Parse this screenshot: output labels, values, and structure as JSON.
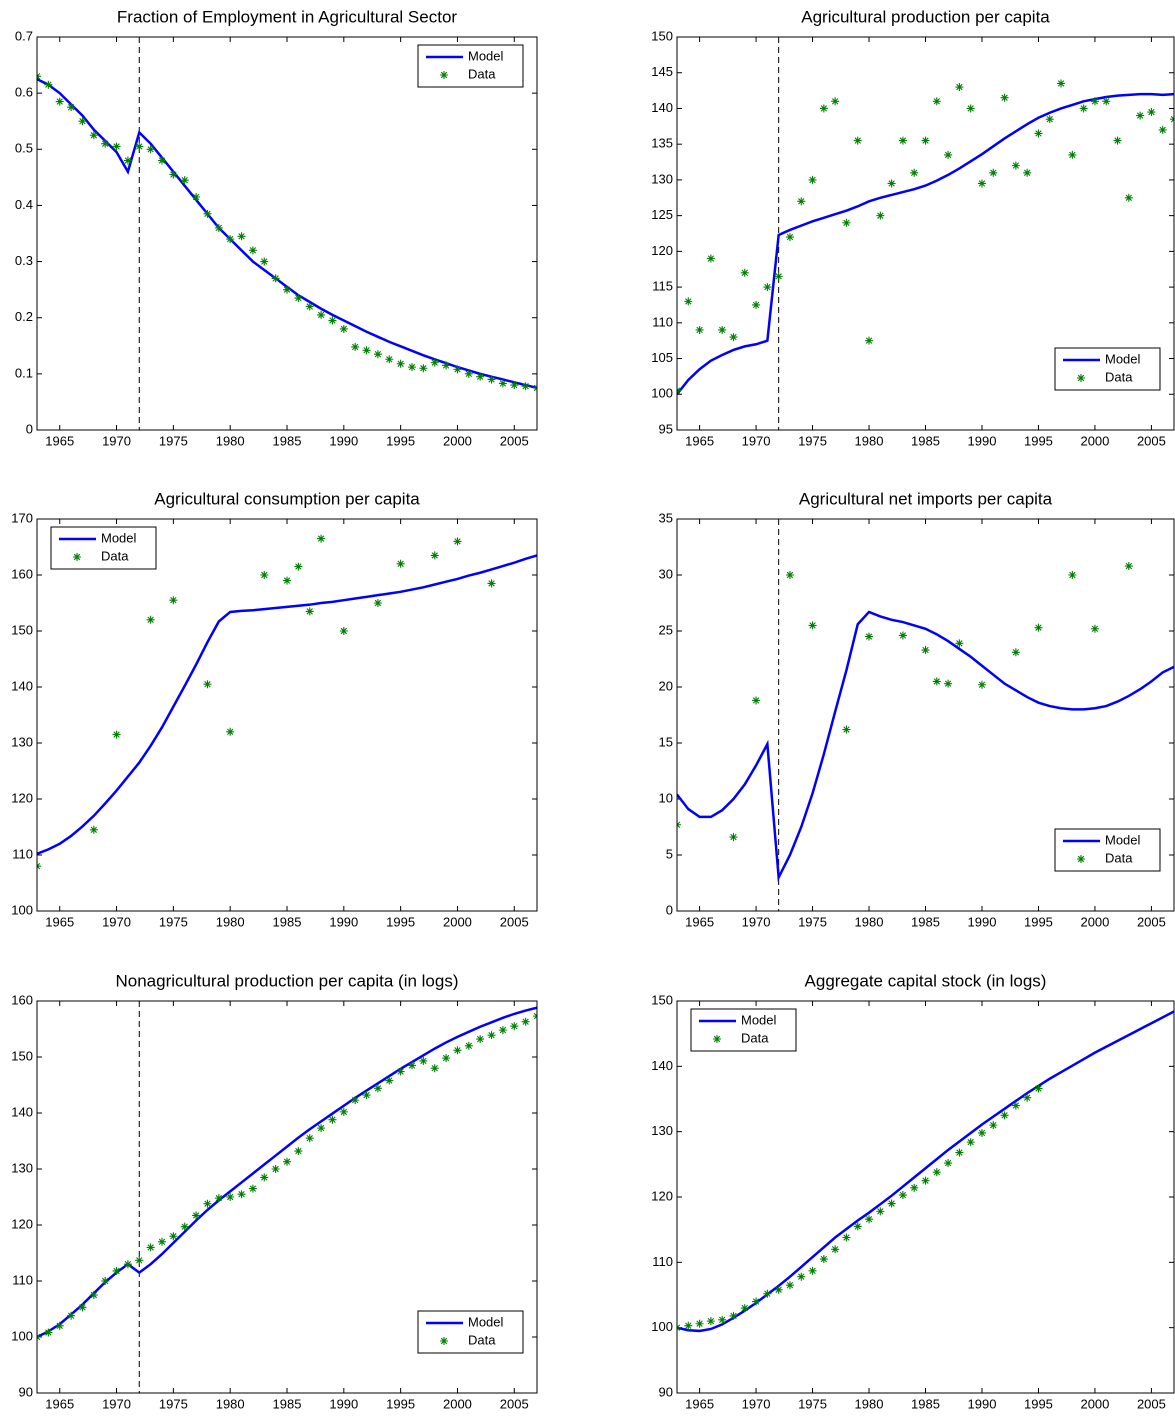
{
  "chart_data": [
    {
      "type": "line",
      "title": "Fraction of Employment in Agricultural Sector",
      "legend": "upper right",
      "vline": 1972,
      "xlim": [
        1963,
        2007
      ],
      "xticks": [
        1965,
        1970,
        1975,
        1980,
        1985,
        1990,
        1995,
        2000,
        2005
      ],
      "ylim": [
        0,
        0.7
      ],
      "yticks": [
        0,
        0.1,
        0.2,
        0.3,
        0.4,
        0.5,
        0.6,
        0.7
      ],
      "x": [
        1963,
        1964,
        1965,
        1966,
        1967,
        1968,
        1969,
        1970,
        1971,
        1972,
        1973,
        1974,
        1975,
        1976,
        1977,
        1978,
        1979,
        1980,
        1981,
        1982,
        1983,
        1984,
        1985,
        1986,
        1987,
        1988,
        1989,
        1990,
        1991,
        1992,
        1993,
        1994,
        1995,
        1996,
        1997,
        1998,
        1999,
        2000,
        2001,
        2002,
        2003,
        2004,
        2005,
        2006,
        2007
      ],
      "series": [
        {
          "name": "Model",
          "color": "#0000ff",
          "mode": "line",
          "values": [
            0.625,
            0.615,
            0.6,
            0.58,
            0.56,
            0.535,
            0.515,
            0.495,
            0.46,
            0.53,
            0.51,
            0.485,
            0.46,
            0.435,
            0.41,
            0.385,
            0.36,
            0.34,
            0.32,
            0.3,
            0.285,
            0.27,
            0.255,
            0.24,
            0.228,
            0.216,
            0.205,
            0.195,
            0.185,
            0.175,
            0.166,
            0.157,
            0.149,
            0.141,
            0.133,
            0.126,
            0.119,
            0.112,
            0.106,
            0.1,
            0.095,
            0.09,
            0.085,
            0.08,
            0.075
          ]
        },
        {
          "name": "Data",
          "color": "#008000",
          "mode": "markers",
          "values": [
            0.63,
            0.615,
            0.585,
            0.575,
            0.55,
            0.525,
            0.51,
            0.505,
            0.48,
            0.505,
            0.5,
            0.48,
            0.455,
            0.445,
            0.415,
            0.385,
            0.36,
            0.34,
            0.345,
            0.32,
            0.3,
            0.27,
            0.25,
            0.235,
            0.22,
            0.205,
            0.195,
            0.18,
            0.148,
            0.142,
            0.135,
            0.126,
            0.118,
            0.112,
            0.11,
            0.12,
            0.115,
            0.108,
            0.1,
            0.095,
            0.09,
            0.083,
            0.08,
            0.078,
            0.075
          ]
        }
      ]
    },
    {
      "type": "line",
      "title": "Agricultural production per capita",
      "legend": "lower right",
      "vline": 1972,
      "xlim": [
        1963,
        2007
      ],
      "xticks": [
        1965,
        1970,
        1975,
        1980,
        1985,
        1990,
        1995,
        2000,
        2005
      ],
      "ylim": [
        95,
        150
      ],
      "yticks": [
        95,
        100,
        105,
        110,
        115,
        120,
        125,
        130,
        135,
        140,
        145,
        150
      ],
      "x": [
        1963,
        1964,
        1965,
        1966,
        1967,
        1968,
        1969,
        1970,
        1971,
        1972,
        1973,
        1974,
        1975,
        1976,
        1977,
        1978,
        1979,
        1980,
        1981,
        1982,
        1983,
        1984,
        1985,
        1986,
        1987,
        1988,
        1989,
        1990,
        1991,
        1992,
        1993,
        1994,
        1995,
        1996,
        1997,
        1998,
        1999,
        2000,
        2001,
        2002,
        2003,
        2004,
        2005,
        2006,
        2007
      ],
      "series": [
        {
          "name": "Model",
          "color": "#0000ff",
          "mode": "line",
          "values": [
            100,
            102,
            103.5,
            104.7,
            105.5,
            106.2,
            106.7,
            107,
            107.5,
            122.3,
            123,
            123.6,
            124.2,
            124.7,
            125.2,
            125.7,
            126.3,
            127,
            127.5,
            127.9,
            128.3,
            128.7,
            129.2,
            129.9,
            130.7,
            131.6,
            132.6,
            133.6,
            134.7,
            135.8,
            136.8,
            137.8,
            138.7,
            139.4,
            140,
            140.5,
            141,
            141.3,
            141.6,
            141.8,
            141.9,
            142,
            142,
            141.9,
            142
          ]
        },
        {
          "name": "Data",
          "color": "#008000",
          "mode": "markers",
          "values": [
            100.5,
            113,
            109,
            119,
            109,
            108,
            117,
            112.5,
            115,
            116.5,
            122,
            127,
            130,
            140,
            141,
            124,
            135.5,
            107.5,
            125,
            129.5,
            135.5,
            131,
            135.5,
            141,
            133.5,
            143,
            140,
            129.5,
            131,
            141.5,
            132,
            131,
            136.5,
            138.5,
            143.5,
            133.5,
            140,
            141,
            141,
            135.5,
            127.5,
            139,
            139.5,
            137,
            138.5
          ]
        }
      ]
    },
    {
      "type": "line",
      "title": "Agricultural consumption per capita",
      "legend": "upper left",
      "xlim": [
        1963,
        2007
      ],
      "xticks": [
        1965,
        1970,
        1975,
        1980,
        1985,
        1990,
        1995,
        2000,
        2005
      ],
      "ylim": [
        100,
        170
      ],
      "yticks": [
        100,
        110,
        120,
        130,
        140,
        150,
        160,
        170
      ],
      "x": [
        1963,
        1964,
        1965,
        1966,
        1967,
        1968,
        1969,
        1970,
        1971,
        1972,
        1973,
        1974,
        1975,
        1976,
        1977,
        1978,
        1979,
        1980,
        1981,
        1982,
        1983,
        1984,
        1985,
        1986,
        1987,
        1988,
        1989,
        1990,
        1991,
        1992,
        1993,
        1994,
        1995,
        1996,
        1997,
        1998,
        1999,
        2000,
        2001,
        2002,
        2003,
        2004,
        2005,
        2006,
        2007
      ],
      "series": [
        {
          "name": "Model",
          "color": "#0000ff",
          "mode": "line",
          "values": [
            110.2,
            111,
            112,
            113.4,
            115.1,
            117,
            119.2,
            121.5,
            124,
            126.5,
            129.5,
            132.8,
            136.5,
            140.2,
            144,
            148,
            151.7,
            153.4,
            153.6,
            153.7,
            153.9,
            154.1,
            154.3,
            154.5,
            154.7,
            155,
            155.2,
            155.5,
            155.8,
            156.1,
            156.4,
            156.7,
            157,
            157.4,
            157.8,
            158.3,
            158.8,
            159.3,
            159.9,
            160.4,
            161,
            161.6,
            162.2,
            162.9,
            163.5
          ]
        },
        {
          "name": "Data",
          "color": "#008000",
          "mode": "markers",
          "values": [
            108,
            null,
            null,
            null,
            null,
            114.5,
            null,
            131.5,
            null,
            null,
            152,
            null,
            155.5,
            null,
            null,
            140.5,
            null,
            132,
            null,
            null,
            160,
            null,
            159,
            161.5,
            153.5,
            166.5,
            null,
            150,
            null,
            null,
            155,
            null,
            162,
            null,
            null,
            163.5,
            null,
            166,
            null,
            null,
            158.5,
            null,
            null,
            null,
            null
          ]
        }
      ]
    },
    {
      "type": "line",
      "title": "Agricultural net imports per capita",
      "legend": "lower right",
      "vline": 1972,
      "xlim": [
        1963,
        2007
      ],
      "xticks": [
        1965,
        1970,
        1975,
        1980,
        1985,
        1990,
        1995,
        2000,
        2005
      ],
      "ylim": [
        0,
        35
      ],
      "yticks": [
        0,
        5,
        10,
        15,
        20,
        25,
        30,
        35
      ],
      "x": [
        1963,
        1964,
        1965,
        1966,
        1967,
        1968,
        1969,
        1970,
        1971,
        1972,
        1973,
        1974,
        1975,
        1976,
        1977,
        1978,
        1979,
        1980,
        1981,
        1982,
        1983,
        1984,
        1985,
        1986,
        1987,
        1988,
        1989,
        1990,
        1991,
        1992,
        1993,
        1994,
        1995,
        1996,
        1997,
        1998,
        1999,
        2000,
        2001,
        2002,
        2003,
        2004,
        2005,
        2006,
        2007
      ],
      "series": [
        {
          "name": "Model",
          "color": "#0000ff",
          "mode": "line",
          "values": [
            10.4,
            9.1,
            8.4,
            8.4,
            9,
            10,
            11.3,
            13,
            14.9,
            3,
            5,
            7.5,
            10.5,
            14,
            17.8,
            21.5,
            25.6,
            26.7,
            26.3,
            26,
            25.8,
            25.5,
            25.2,
            24.7,
            24.1,
            23.4,
            22.7,
            21.9,
            21.1,
            20.3,
            19.7,
            19.1,
            18.6,
            18.3,
            18.1,
            18,
            18,
            18.1,
            18.3,
            18.7,
            19.2,
            19.8,
            20.5,
            21.3,
            21.8
          ]
        },
        {
          "name": "Data",
          "color": "#008000",
          "mode": "markers",
          "values": [
            7.7,
            null,
            null,
            null,
            null,
            6.6,
            null,
            18.8,
            null,
            null,
            30,
            null,
            25.5,
            null,
            null,
            16.2,
            null,
            24.5,
            null,
            null,
            24.6,
            null,
            23.3,
            20.5,
            20.3,
            23.9,
            null,
            20.2,
            null,
            null,
            23.1,
            null,
            25.3,
            null,
            null,
            30,
            null,
            25.2,
            null,
            null,
            30.8,
            null,
            null,
            null,
            null
          ]
        }
      ]
    },
    {
      "type": "line",
      "title": "Nonagricultural production per capita (in logs)",
      "legend": "lower right",
      "vline": 1972,
      "xlim": [
        1963,
        2007
      ],
      "xticks": [
        1965,
        1970,
        1975,
        1980,
        1985,
        1990,
        1995,
        2000,
        2005
      ],
      "ylim": [
        90,
        160
      ],
      "yticks": [
        90,
        100,
        110,
        120,
        130,
        140,
        150,
        160
      ],
      "x": [
        1963,
        1964,
        1965,
        1966,
        1967,
        1968,
        1969,
        1970,
        1971,
        1972,
        1973,
        1974,
        1975,
        1976,
        1977,
        1978,
        1979,
        1980,
        1981,
        1982,
        1983,
        1984,
        1985,
        1986,
        1987,
        1988,
        1989,
        1990,
        1991,
        1992,
        1993,
        1994,
        1995,
        1996,
        1997,
        1998,
        1999,
        2000,
        2001,
        2002,
        2003,
        2004,
        2005,
        2006,
        2007
      ],
      "series": [
        {
          "name": "Model",
          "color": "#0000ff",
          "mode": "line",
          "values": [
            100,
            101,
            102.3,
            104,
            105.8,
            107.8,
            109.8,
            111.5,
            113,
            111.5,
            113,
            114.8,
            116.8,
            118.8,
            120.8,
            122.7,
            124.4,
            126,
            127.6,
            129.2,
            130.8,
            132.4,
            134,
            135.6,
            137.1,
            138.5,
            139.9,
            141.3,
            142.7,
            144,
            145.3,
            146.6,
            147.9,
            149.1,
            150.3,
            151.5,
            152.6,
            153.6,
            154.5,
            155.4,
            156.2,
            157,
            157.7,
            158.3,
            158.8
          ]
        },
        {
          "name": "Data",
          "color": "#008000",
          "mode": "markers",
          "values": [
            100,
            100.8,
            102,
            103.8,
            105.3,
            107.5,
            110,
            111.8,
            113,
            113.7,
            116,
            117,
            118,
            119.7,
            121.7,
            123.8,
            124.8,
            125,
            125.5,
            126.5,
            128.5,
            130,
            131.3,
            133.2,
            135.5,
            137.3,
            138.8,
            140.2,
            142.3,
            143.2,
            144.4,
            145.8,
            147.4,
            148.5,
            149.3,
            148,
            149.8,
            151.2,
            152,
            153.2,
            153.9,
            154.8,
            155.5,
            156.3,
            157.3
          ]
        }
      ]
    },
    {
      "type": "line",
      "title": "Aggregate capital stock (in logs)",
      "legend": "upper left",
      "xlim": [
        1963,
        2007
      ],
      "xticks": [
        1965,
        1970,
        1975,
        1980,
        1985,
        1990,
        1995,
        2000,
        2005
      ],
      "ylim": [
        90,
        150
      ],
      "yticks": [
        90,
        100,
        110,
        120,
        130,
        140,
        150
      ],
      "x": [
        1963,
        1964,
        1965,
        1966,
        1967,
        1968,
        1969,
        1970,
        1971,
        1972,
        1973,
        1974,
        1975,
        1976,
        1977,
        1978,
        1979,
        1980,
        1981,
        1982,
        1983,
        1984,
        1985,
        1986,
        1987,
        1988,
        1989,
        1990,
        1991,
        1992,
        1993,
        1994,
        1995,
        1996,
        1997,
        1998,
        1999,
        2000,
        2001,
        2002,
        2003,
        2004,
        2005,
        2006,
        2007
      ],
      "series": [
        {
          "name": "Model",
          "color": "#0000ff",
          "mode": "line",
          "values": [
            100,
            99.6,
            99.5,
            99.8,
            100.5,
            101.5,
            102.6,
            103.8,
            105.1,
            106.4,
            107.8,
            109.3,
            110.8,
            112.3,
            113.8,
            115.1,
            116.4,
            117.6,
            118.9,
            120.2,
            121.6,
            123,
            124.4,
            125.8,
            127.2,
            128.5,
            129.8,
            131.1,
            132.3,
            133.5,
            134.7,
            135.9,
            137,
            138.1,
            139.1,
            140.1,
            141.1,
            142.1,
            143,
            143.9,
            144.8,
            145.7,
            146.6,
            147.5,
            148.4
          ]
        },
        {
          "name": "Data",
          "color": "#008000",
          "mode": "markers",
          "values": [
            100,
            100.3,
            100.6,
            101,
            101.2,
            101.8,
            103,
            104,
            105.2,
            105.8,
            106.5,
            107.8,
            108.7,
            110.5,
            112,
            113.8,
            115.5,
            116.6,
            117.8,
            119,
            120.3,
            121.4,
            122.5,
            123.8,
            125.2,
            126.8,
            128.4,
            129.8,
            131,
            132.5,
            134,
            135.2,
            136.6,
            null,
            null,
            null,
            null,
            null,
            null,
            null,
            null,
            null,
            null,
            null,
            null
          ]
        }
      ]
    }
  ]
}
